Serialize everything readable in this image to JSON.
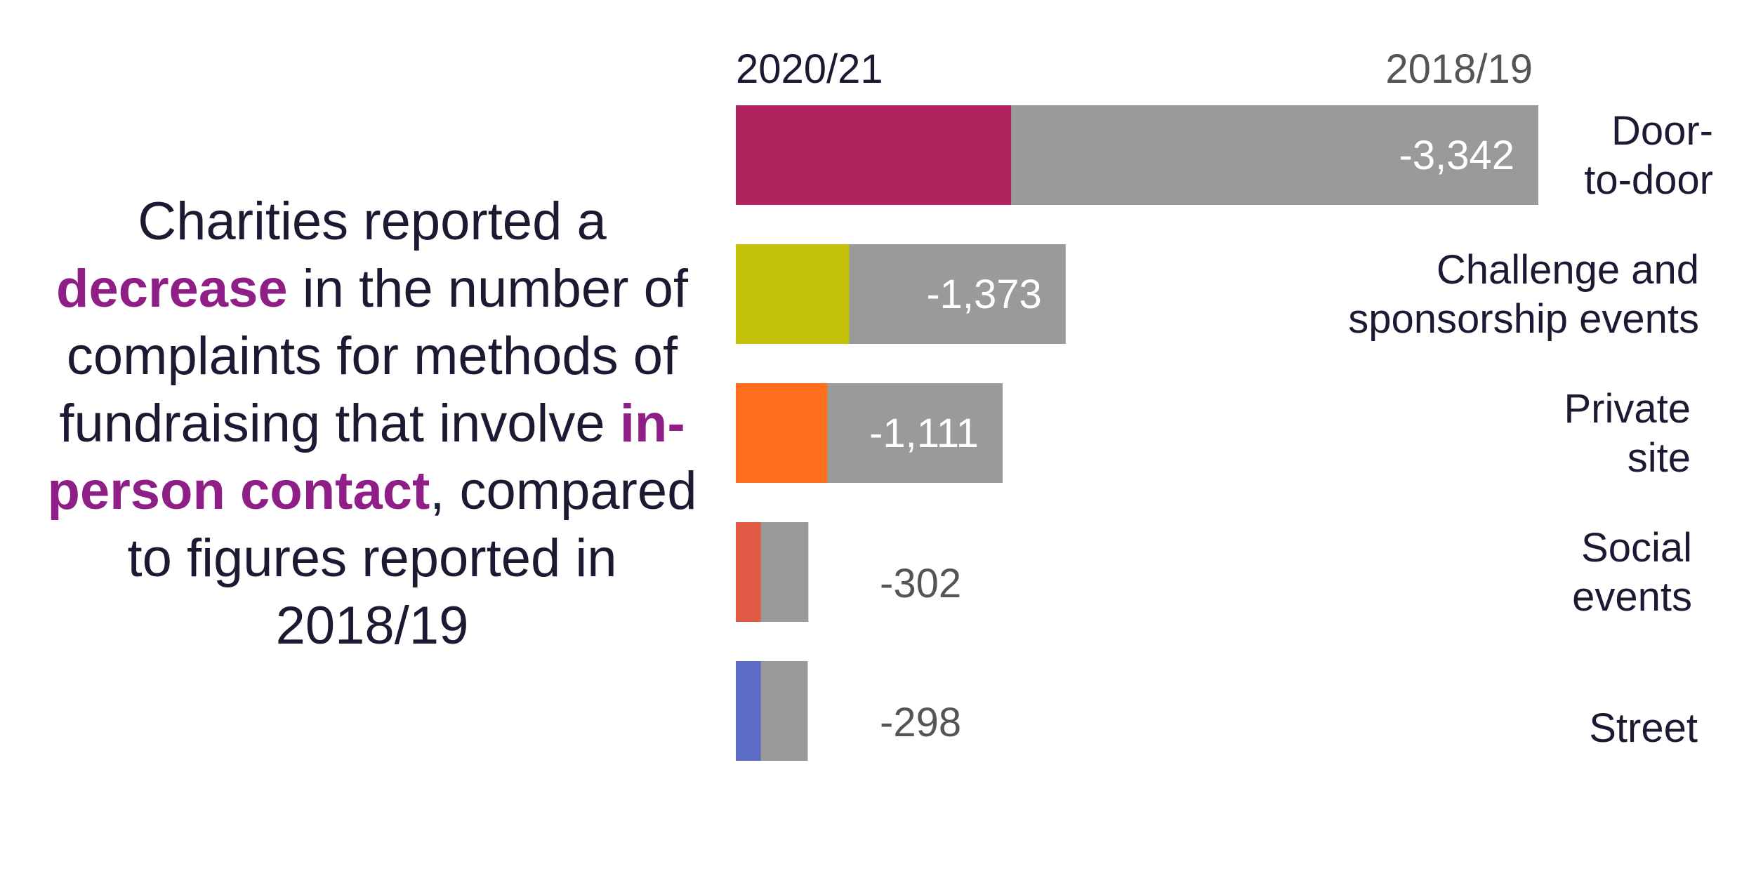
{
  "headline": {
    "part1": "Charities reported a ",
    "highlight1": "decrease",
    "part2": " in the number of complaints for methods of fundraising that involve ",
    "highlight2": "in-person contact",
    "part3": ", compared to figures reported in 2018/19"
  },
  "chart_data": {
    "type": "bar",
    "orientation": "horizontal",
    "series": [
      {
        "name": "2020/21",
        "values": [
          1745,
          718,
          580,
          158,
          158
        ]
      },
      {
        "name": "2018/19",
        "values": [
          5087,
          2091,
          1691,
          460,
          456
        ]
      }
    ],
    "categories": [
      [
        "Door-",
        "to-door"
      ],
      [
        "Challenge and",
        "sponsorship events"
      ],
      [
        "Private",
        "site"
      ],
      [
        "Social",
        "events"
      ],
      [
        "Street"
      ]
    ],
    "difference_labels": [
      "-3,342",
      "-1,373",
      "-1,111",
      "-302",
      "-298"
    ],
    "colors_2020": [
      "#b0235e",
      "#c5c20a",
      "#ff6e1c",
      "#e05a45",
      "#5b6bc6"
    ],
    "color_2018": "#9a9a9a",
    "legend": [
      "2020/21",
      "2018/19"
    ],
    "legend_placement": "top"
  }
}
